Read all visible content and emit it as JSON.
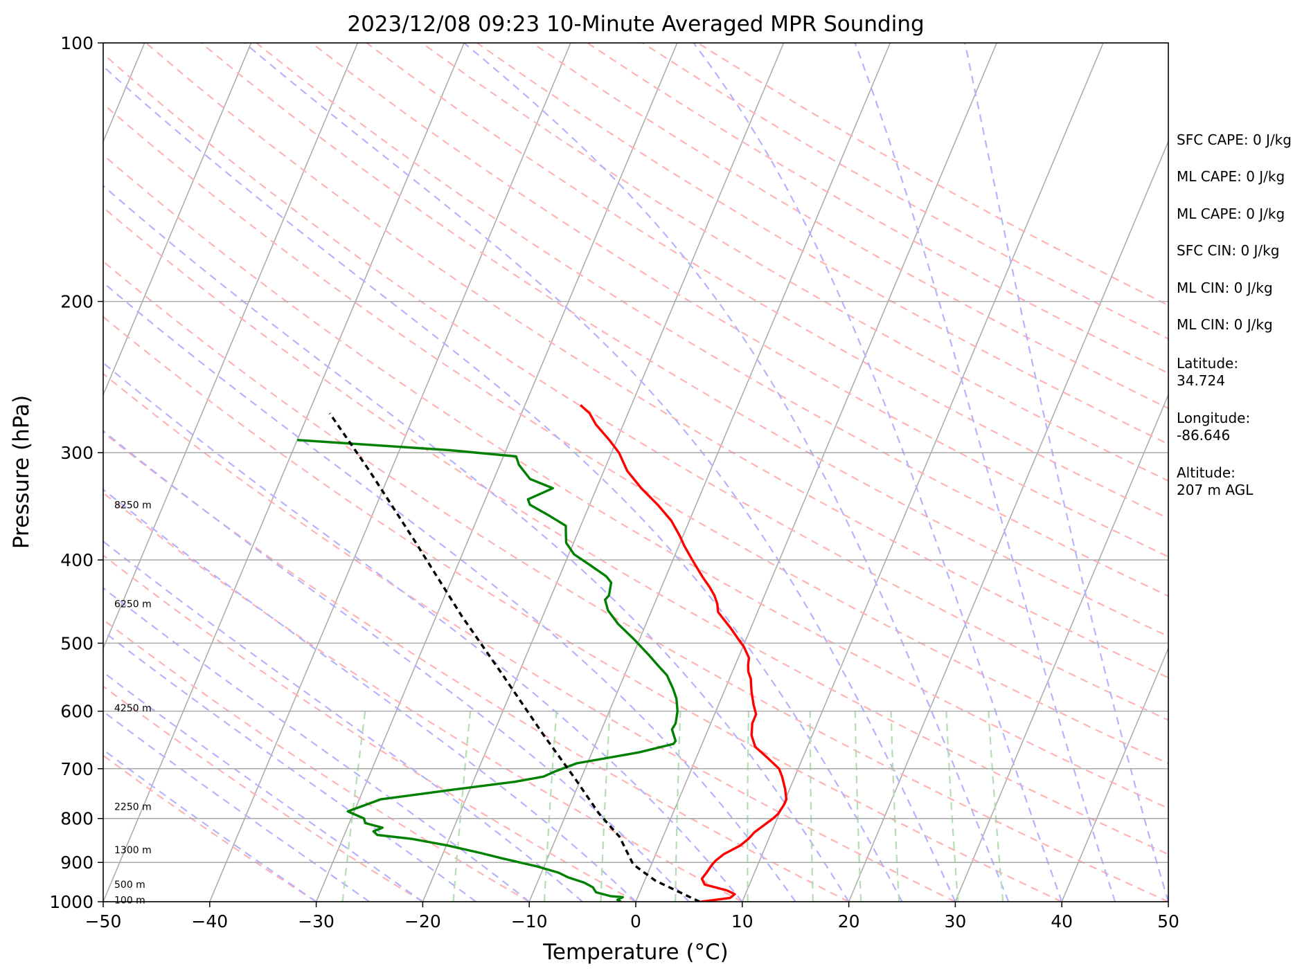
{
  "chart_data": {
    "type": "line",
    "title": "2023/12/08 09:23 10-Minute Averaged MPR Sounding",
    "xlabel": "Temperature (°C)",
    "ylabel": "Pressure (hPa)",
    "xlim": [
      -50,
      50
    ],
    "ylim": [
      1000,
      100
    ],
    "y_scale": "log",
    "grid": true,
    "x_ticks": [
      -50,
      -40,
      -30,
      -20,
      -10,
      0,
      10,
      20,
      30,
      40,
      50
    ],
    "x_tick_labels": [
      "−50",
      "−40",
      "−30",
      "−20",
      "−10",
      "0",
      "10",
      "20",
      "30",
      "40",
      "50"
    ],
    "y_ticks": [
      100,
      200,
      300,
      400,
      500,
      600,
      700,
      800,
      900,
      1000
    ],
    "y_tick_labels": [
      "100",
      "200",
      "300",
      "400",
      "500",
      "600",
      "700",
      "800",
      "900",
      "1000"
    ],
    "series": [
      {
        "color": "#ff0000",
        "points": [
          [
            6.1,
            1000
          ],
          [
            8.7,
            990
          ],
          [
            9.0,
            980
          ],
          [
            8.1,
            970
          ],
          [
            5.8,
            955
          ],
          [
            5.3,
            940
          ],
          [
            5.5,
            925
          ],
          [
            5.7,
            905
          ],
          [
            5.9,
            895
          ],
          [
            6.4,
            880
          ],
          [
            7.6,
            860
          ],
          [
            8.1,
            845
          ],
          [
            8.4,
            830
          ],
          [
            9.0,
            815
          ],
          [
            9.6,
            800
          ],
          [
            9.9,
            790
          ],
          [
            10.1,
            770
          ],
          [
            10.1,
            760
          ],
          [
            9.6,
            740
          ],
          [
            8.8,
            715
          ],
          [
            8.2,
            700
          ],
          [
            6.7,
            680
          ],
          [
            5.1,
            660
          ],
          [
            4.3,
            640
          ],
          [
            3.9,
            620
          ],
          [
            3.9,
            605
          ],
          [
            3.3,
            590
          ],
          [
            2.6,
            570
          ],
          [
            2.0,
            550
          ],
          [
            1.5,
            540
          ],
          [
            1.2,
            530
          ],
          [
            1.0,
            520
          ],
          [
            0.1,
            505
          ],
          [
            -0.7,
            495
          ],
          [
            -1.9,
            480
          ],
          [
            -3.7,
            460
          ],
          [
            -4.1,
            450
          ],
          [
            -4.7,
            440
          ],
          [
            -5.5,
            430
          ],
          [
            -6.6,
            418
          ],
          [
            -8.0,
            402
          ],
          [
            -9.5,
            385
          ],
          [
            -10.3,
            375
          ],
          [
            -11.7,
            360
          ],
          [
            -13.6,
            345
          ],
          [
            -15.8,
            330
          ],
          [
            -17.8,
            315
          ],
          [
            -19.3,
            300
          ],
          [
            -20.7,
            290
          ],
          [
            -22.6,
            278
          ],
          [
            -23.6,
            270
          ],
          [
            -24.8,
            264
          ]
        ]
      },
      {
        "color": "#008000",
        "points": [
          [
            -1.4,
            1000
          ],
          [
            -1.8,
            995
          ],
          [
            -1.4,
            988
          ],
          [
            -2.6,
            985
          ],
          [
            -4.1,
            975
          ],
          [
            -4.6,
            962
          ],
          [
            -5.6,
            950
          ],
          [
            -7.3,
            937
          ],
          [
            -8.4,
            925
          ],
          [
            -10.6,
            910
          ],
          [
            -14.3,
            890
          ],
          [
            -16.4,
            878
          ],
          [
            -19.9,
            860
          ],
          [
            -23.5,
            845
          ],
          [
            -26.9,
            836
          ],
          [
            -27.4,
            828
          ],
          [
            -26.7,
            820
          ],
          [
            -28.5,
            810
          ],
          [
            -28.8,
            800
          ],
          [
            -30.6,
            785
          ],
          [
            -30.1,
            780
          ],
          [
            -28.0,
            760
          ],
          [
            -21.4,
            740
          ],
          [
            -16.1,
            725
          ],
          [
            -13.6,
            715
          ],
          [
            -12.7,
            705
          ],
          [
            -11.0,
            690
          ],
          [
            -5.6,
            670
          ],
          [
            -2.7,
            655
          ],
          [
            -2.6,
            650
          ],
          [
            -3.4,
            630
          ],
          [
            -3.3,
            620
          ],
          [
            -3.6,
            600
          ],
          [
            -4.2,
            580
          ],
          [
            -4.9,
            565
          ],
          [
            -6.0,
            545
          ],
          [
            -7.3,
            530
          ],
          [
            -8.6,
            515
          ],
          [
            -10.5,
            495
          ],
          [
            -12.6,
            475
          ],
          [
            -14.1,
            458
          ],
          [
            -14.8,
            445
          ],
          [
            -14.6,
            440
          ],
          [
            -14.9,
            425
          ],
          [
            -15.6,
            418
          ],
          [
            -17.5,
            406
          ],
          [
            -19.5,
            394
          ],
          [
            -20.7,
            382
          ],
          [
            -21.2,
            370
          ],
          [
            -21.4,
            365
          ],
          [
            -23.4,
            355
          ],
          [
            -25.6,
            345
          ],
          [
            -26.0,
            340
          ],
          [
            -24.1,
            330
          ],
          [
            -26.6,
            322
          ],
          [
            -28.2,
            310
          ],
          [
            -28.8,
            303
          ],
          [
            -35.3,
            298
          ],
          [
            -50.0,
            290
          ]
        ]
      },
      {
        "color": "#000000",
        "dashes": "8,6",
        "points": [
          [
            6.0,
            1000
          ],
          [
            1.0,
            945
          ],
          [
            -1.7,
            905
          ],
          [
            -4.1,
            840
          ],
          [
            -6.9,
            790
          ],
          [
            -10.5,
            720
          ],
          [
            -15.2,
            640
          ],
          [
            -21.4,
            545
          ],
          [
            -27.6,
            465
          ],
          [
            -35.0,
            380
          ],
          [
            -42.0,
            315
          ],
          [
            -48.0,
            270
          ]
        ]
      }
    ],
    "height_labels": [
      {
        "text": "100 m",
        "p": 995
      },
      {
        "text": "500 m",
        "p": 955
      },
      {
        "text": "1300 m",
        "p": 870
      },
      {
        "text": "2250 m",
        "p": 775
      },
      {
        "text": "4250 m",
        "p": 595
      },
      {
        "text": "6250 m",
        "p": 450
      },
      {
        "text": "8250 m",
        "p": 345
      }
    ],
    "info": [
      [
        "SFC CAPE: 0 J/kg"
      ],
      [
        "ML CAPE: 0 J/kg"
      ],
      [
        "ML CAPE: 0 J/kg"
      ],
      [
        "SFC CIN: 0 J/kg"
      ],
      [
        "ML CIN: 0 J/kg"
      ],
      [
        "ML CIN: 0 J/kg"
      ],
      [
        "Latitude:",
        "34.724"
      ],
      [
        "Longitude:",
        "-86.646"
      ],
      [
        "Altitude:",
        "207 m AGL"
      ]
    ],
    "background_line_colors": {
      "isotherms": "#a9a9a9",
      "isobars": "#a9a9a9",
      "dry_adiabats": "#ffb3b3",
      "moist_adiabats": "#b3b3ff",
      "mixing_ratio": "#b3ddb3"
    }
  }
}
